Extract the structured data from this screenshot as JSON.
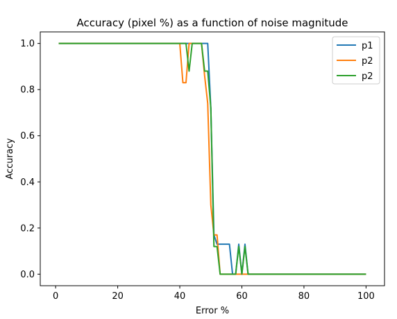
{
  "chart_data": {
    "type": "line",
    "title": "Accuracy (pixel %) as a function of noise magnitude",
    "xlabel": "Error %",
    "ylabel": "Accuracy",
    "xlim": [
      -4.95,
      105.95
    ],
    "ylim": [
      -0.05,
      1.05
    ],
    "xticks": [
      0,
      20,
      40,
      60,
      80,
      100
    ],
    "yticks": [
      0.0,
      0.2,
      0.4,
      0.6,
      0.8,
      1.0
    ],
    "xtick_labels": [
      "0",
      "20",
      "40",
      "60",
      "80",
      "100"
    ],
    "ytick_labels": [
      "0.0",
      "0.2",
      "0.4",
      "0.6",
      "0.8",
      "1.0"
    ],
    "grid": false,
    "legend_position": "top-right",
    "series": [
      {
        "name": "p1",
        "color": "#1f77b4",
        "points": [
          [
            1,
            1.0
          ],
          [
            40,
            1.0
          ],
          [
            46,
            1.0
          ],
          [
            47,
            1.0
          ],
          [
            48,
            1.0
          ],
          [
            49,
            1.0
          ],
          [
            50,
            0.72
          ],
          [
            51,
            0.17
          ],
          [
            52,
            0.13
          ],
          [
            53,
            0.13
          ],
          [
            54,
            0.13
          ],
          [
            55,
            0.13
          ],
          [
            56,
            0.13
          ],
          [
            57,
            0.0
          ],
          [
            58,
            0.0
          ],
          [
            59,
            0.13
          ],
          [
            60,
            0.0
          ],
          [
            61,
            0.13
          ],
          [
            62,
            0.0
          ],
          [
            63,
            0.0
          ],
          [
            70,
            0.0
          ],
          [
            80,
            0.0
          ],
          [
            90,
            0.0
          ],
          [
            100,
            0.0
          ]
        ]
      },
      {
        "name": "p2",
        "color": "#ff7f0e",
        "points": [
          [
            1,
            1.0
          ],
          [
            39,
            1.0
          ],
          [
            40,
            1.0
          ],
          [
            41,
            0.83
          ],
          [
            42,
            0.83
          ],
          [
            43,
            1.0
          ],
          [
            44,
            1.0
          ],
          [
            46,
            1.0
          ],
          [
            47,
            1.0
          ],
          [
            48,
            0.86
          ],
          [
            49,
            0.74
          ],
          [
            50,
            0.3
          ],
          [
            51,
            0.17
          ],
          [
            52,
            0.17
          ],
          [
            53,
            0.0
          ],
          [
            54,
            0.0
          ],
          [
            56,
            0.0
          ],
          [
            57,
            0.0
          ],
          [
            58,
            0.0
          ],
          [
            59,
            0.0
          ],
          [
            60,
            0.0
          ],
          [
            61,
            0.0
          ],
          [
            62,
            0.0
          ],
          [
            63,
            0.0
          ],
          [
            70,
            0.0
          ],
          [
            80,
            0.0
          ],
          [
            90,
            0.0
          ],
          [
            100,
            0.0
          ]
        ]
      },
      {
        "name": "p2",
        "color": "#2ca02c",
        "points": [
          [
            1,
            1.0
          ],
          [
            40,
            1.0
          ],
          [
            42,
            1.0
          ],
          [
            43,
            0.88
          ],
          [
            44,
            1.0
          ],
          [
            45,
            1.0
          ],
          [
            46,
            1.0
          ],
          [
            47,
            1.0
          ],
          [
            48,
            0.88
          ],
          [
            49,
            0.88
          ],
          [
            50,
            0.72
          ],
          [
            51,
            0.12
          ],
          [
            52,
            0.12
          ],
          [
            53,
            0.0
          ],
          [
            54,
            0.0
          ],
          [
            56,
            0.0
          ],
          [
            57,
            0.0
          ],
          [
            58,
            0.0
          ],
          [
            59,
            0.12
          ],
          [
            60,
            0.0
          ],
          [
            61,
            0.12
          ],
          [
            62,
            0.0
          ],
          [
            63,
            0.0
          ],
          [
            70,
            0.0
          ],
          [
            80,
            0.0
          ],
          [
            90,
            0.0
          ],
          [
            100,
            0.0
          ]
        ]
      }
    ]
  }
}
